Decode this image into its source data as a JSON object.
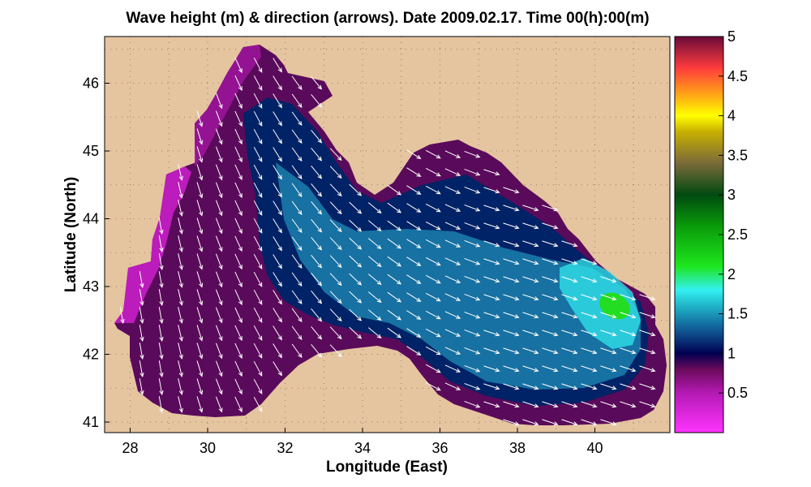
{
  "title": "Wave height (m) & direction (arrows). Date 2009.02.17. Time 00(h):00(m)",
  "xlabel": "Longitude (East)",
  "ylabel": "Latitude (North)",
  "land_color": "#e5c4a0",
  "x_ticks": [
    "28",
    "30",
    "32",
    "34",
    "36",
    "38",
    "40"
  ],
  "y_ticks": [
    "41",
    "42",
    "43",
    "44",
    "45",
    "46"
  ],
  "colorbar": {
    "ticks": [
      "0.5",
      "1",
      "1.5",
      "2",
      "2.5",
      "3",
      "3.5",
      "4",
      "4.5",
      "5"
    ],
    "range": [
      0,
      5
    ],
    "stops": [
      {
        "v": 0.0,
        "color": "#ff33ff"
      },
      {
        "v": 0.5,
        "color": "#b41ab4"
      },
      {
        "v": 0.8,
        "color": "#6a0a5a"
      },
      {
        "v": 1.0,
        "color": "#000050"
      },
      {
        "v": 1.3,
        "color": "#105a96"
      },
      {
        "v": 1.6,
        "color": "#20b4c8"
      },
      {
        "v": 1.8,
        "color": "#33f0f0"
      },
      {
        "v": 2.1,
        "color": "#1ee61e"
      },
      {
        "v": 2.6,
        "color": "#0a9c0a"
      },
      {
        "v": 3.0,
        "color": "#004a10"
      },
      {
        "v": 3.4,
        "color": "#7a6a3a"
      },
      {
        "v": 3.8,
        "color": "#c8b000"
      },
      {
        "v": 4.0,
        "color": "#ffff00"
      },
      {
        "v": 4.3,
        "color": "#ff9a1a"
      },
      {
        "v": 4.6,
        "color": "#ff3c3c"
      },
      {
        "v": 5.0,
        "color": "#6a0a3a"
      }
    ]
  }
}
